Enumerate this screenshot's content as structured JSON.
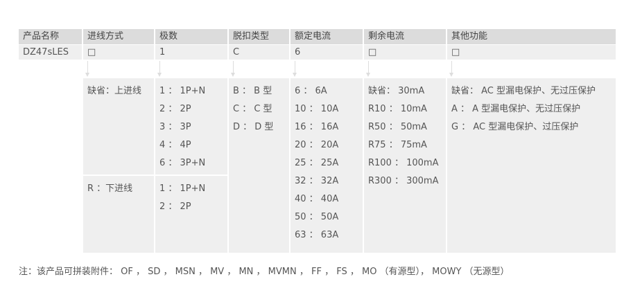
{
  "headers": [
    "产品名称",
    "进线方式",
    "极数",
    "脱扣类型",
    "额定电流",
    "剩余电流",
    "其他功能"
  ],
  "model_row": [
    "DZ47sLES",
    "□",
    "1",
    "C",
    "6",
    "□",
    "□"
  ],
  "options": {
    "wiring_default": [
      "缺省：上进线"
    ],
    "wiring_bottom": [
      "R ：下进线"
    ],
    "poles_top": [
      "1 ： 1P+N",
      "2 ： 2P",
      "3 ： 3P",
      "4 ： 4P",
      "6 ： 3P+N"
    ],
    "poles_bottom": [
      "1 ： 1P+N",
      "2 ： 2P"
    ],
    "trip": [
      "B ： B 型",
      "C ： C 型",
      "D ： D 型"
    ],
    "current": [
      "6 ： 6A",
      "10 ： 10A",
      "16 ： 16A",
      "20 ： 20A",
      "25 ： 25A",
      "32 ： 32A",
      "40 ： 40A",
      "50 ： 50A",
      "63 ： 63A"
    ],
    "residual": [
      "缺省： 30mA",
      "R10 ： 10mA",
      "R50 ： 50mA",
      "R75 ： 75mA",
      "R100 ： 100mA",
      "R300 ： 300mA"
    ],
    "other": [
      "缺省： AC 型漏电保护、无过压保护",
      "A ： A 型漏电保护、无过压保护",
      "G ： AC 型漏电保护、过压保护"
    ]
  },
  "note": "注：该产品可拼装附件： OF ， SD ， MSN ， MV ， MN ， MVMN ， FF ， FS ， MO （有源型）， MOWY （无源型）"
}
